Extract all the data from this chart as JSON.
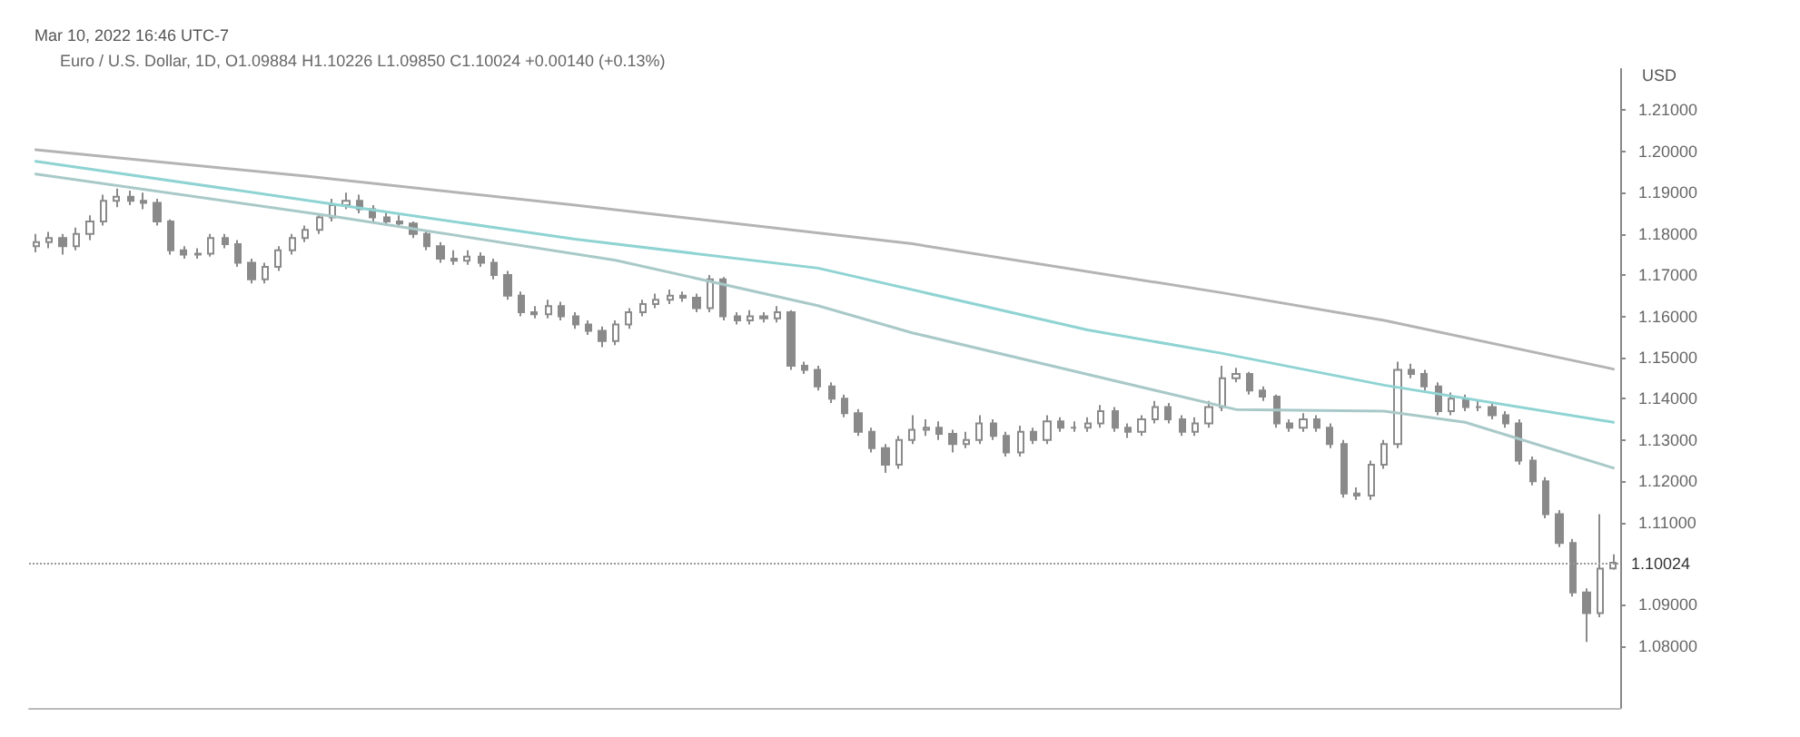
{
  "chart_data": {
    "type": "candlestick",
    "title": "Mar 10, 2022 16:46 UTC-7",
    "subtitle": "Euro / U.S. Dollar, 1D, O1.09884 H1.10226 L1.09850 C1.10024 +0.00140 (+0.13%)",
    "ylabel": "USD",
    "categories": [
      null,
      null,
      null,
      null,
      null,
      null,
      null,
      null,
      null,
      null,
      null,
      null,
      null,
      null,
      null,
      null,
      null,
      null,
      null,
      null,
      null,
      null,
      null,
      null,
      null,
      null,
      null,
      null,
      null,
      null,
      null,
      null,
      null,
      null,
      null,
      null,
      null,
      null,
      null,
      null,
      null,
      null,
      null,
      null,
      null,
      null,
      null,
      null,
      null,
      null,
      null,
      null,
      null,
      null,
      null,
      null,
      null,
      null,
      null,
      null,
      null,
      null,
      null,
      null,
      null,
      null,
      null,
      null,
      null,
      null,
      null,
      null,
      null,
      null,
      null,
      null,
      null,
      null,
      null,
      null,
      null,
      null,
      null,
      null,
      null,
      null,
      null,
      null,
      null,
      null,
      null,
      null,
      null,
      null,
      null,
      null,
      null,
      null,
      null,
      null,
      null,
      null,
      null,
      null,
      null,
      null,
      null,
      null,
      null,
      null,
      null,
      null,
      null,
      null,
      null,
      null,
      null,
      null
    ],
    "ohlc": [
      [
        1.177,
        1.18,
        1.1755,
        1.178
      ],
      [
        1.178,
        1.1805,
        1.1765,
        1.179
      ],
      [
        1.179,
        1.18,
        1.175,
        1.177
      ],
      [
        1.177,
        1.1815,
        1.176,
        1.18
      ],
      [
        1.18,
        1.1845,
        1.1785,
        1.183
      ],
      [
        1.183,
        1.1895,
        1.182,
        1.188
      ],
      [
        1.188,
        1.191,
        1.1865,
        1.189
      ],
      [
        1.189,
        1.1905,
        1.187,
        1.188
      ],
      [
        1.188,
        1.19,
        1.186,
        1.1875
      ],
      [
        1.1875,
        1.1885,
        1.182,
        1.183
      ],
      [
        1.183,
        1.1835,
        1.175,
        1.176
      ],
      [
        1.176,
        1.177,
        1.174,
        1.175
      ],
      [
        1.175,
        1.1765,
        1.174,
        1.1752
      ],
      [
        1.1752,
        1.18,
        1.1745,
        1.179
      ],
      [
        1.179,
        1.18,
        1.1765,
        1.1775
      ],
      [
        1.1775,
        1.1785,
        1.172,
        1.173
      ],
      [
        1.173,
        1.174,
        1.168,
        1.169
      ],
      [
        1.169,
        1.173,
        1.168,
        1.172
      ],
      [
        1.172,
        1.177,
        1.171,
        1.176
      ],
      [
        1.176,
        1.18,
        1.175,
        1.179
      ],
      [
        1.179,
        1.182,
        1.178,
        1.181
      ],
      [
        1.181,
        1.185,
        1.18,
        1.184
      ],
      [
        1.184,
        1.1885,
        1.183,
        1.187
      ],
      [
        1.187,
        1.19,
        1.186,
        1.188
      ],
      [
        1.188,
        1.1895,
        1.185,
        1.186
      ],
      [
        1.186,
        1.187,
        1.183,
        1.184
      ],
      [
        1.184,
        1.1855,
        1.182,
        1.183
      ],
      [
        1.183,
        1.1845,
        1.1815,
        1.1825
      ],
      [
        1.1825,
        1.183,
        1.179,
        1.18
      ],
      [
        1.18,
        1.181,
        1.176,
        1.177
      ],
      [
        1.177,
        1.178,
        1.173,
        1.174
      ],
      [
        1.174,
        1.176,
        1.1725,
        1.1735
      ],
      [
        1.1735,
        1.176,
        1.1725,
        1.1745
      ],
      [
        1.1745,
        1.1755,
        1.172,
        1.173
      ],
      [
        1.173,
        1.174,
        1.169,
        1.17
      ],
      [
        1.17,
        1.171,
        1.164,
        1.165
      ],
      [
        1.165,
        1.166,
        1.16,
        1.161
      ],
      [
        1.161,
        1.1625,
        1.1595,
        1.1605
      ],
      [
        1.1605,
        1.164,
        1.1595,
        1.1625
      ],
      [
        1.1625,
        1.1635,
        1.159,
        1.16
      ],
      [
        1.16,
        1.161,
        1.157,
        1.158
      ],
      [
        1.158,
        1.159,
        1.1555,
        1.1565
      ],
      [
        1.1565,
        1.1575,
        1.1525,
        1.154
      ],
      [
        1.154,
        1.159,
        1.153,
        1.158
      ],
      [
        1.158,
        1.162,
        1.157,
        1.161
      ],
      [
        1.161,
        1.164,
        1.16,
        1.163
      ],
      [
        1.163,
        1.1655,
        1.162,
        1.164
      ],
      [
        1.164,
        1.1665,
        1.163,
        1.165
      ],
      [
        1.165,
        1.166,
        1.1635,
        1.1645
      ],
      [
        1.1645,
        1.1655,
        1.161,
        1.162
      ],
      [
        1.162,
        1.17,
        1.161,
        1.169
      ],
      [
        1.169,
        1.1695,
        1.159,
        1.16
      ],
      [
        1.16,
        1.161,
        1.158,
        1.159
      ],
      [
        1.159,
        1.1615,
        1.158,
        1.16
      ],
      [
        1.16,
        1.161,
        1.1585,
        1.1595
      ],
      [
        1.1595,
        1.1625,
        1.1585,
        1.161
      ],
      [
        1.161,
        1.1615,
        1.147,
        1.148
      ],
      [
        1.148,
        1.149,
        1.146,
        1.147
      ],
      [
        1.147,
        1.148,
        1.142,
        1.143
      ],
      [
        1.143,
        1.144,
        1.139,
        1.14
      ],
      [
        1.14,
        1.141,
        1.1355,
        1.1365
      ],
      [
        1.1365,
        1.1375,
        1.131,
        1.132
      ],
      [
        1.132,
        1.133,
        1.127,
        1.128
      ],
      [
        1.128,
        1.129,
        1.122,
        1.124
      ],
      [
        1.124,
        1.131,
        1.123,
        1.13
      ],
      [
        1.13,
        1.136,
        1.129,
        1.1325
      ],
      [
        1.1325,
        1.135,
        1.131,
        1.133
      ],
      [
        1.133,
        1.1345,
        1.13,
        1.1315
      ],
      [
        1.1315,
        1.1325,
        1.127,
        1.129
      ],
      [
        1.129,
        1.132,
        1.128,
        1.13
      ],
      [
        1.13,
        1.136,
        1.129,
        1.134
      ],
      [
        1.134,
        1.135,
        1.13,
        1.131
      ],
      [
        1.131,
        1.132,
        1.126,
        1.127
      ],
      [
        1.127,
        1.1335,
        1.126,
        1.132
      ],
      [
        1.132,
        1.133,
        1.129,
        1.13
      ],
      [
        1.13,
        1.136,
        1.129,
        1.1345
      ],
      [
        1.1345,
        1.1355,
        1.132,
        1.133
      ],
      [
        1.133,
        1.1345,
        1.132,
        1.133
      ],
      [
        1.133,
        1.1355,
        1.132,
        1.134
      ],
      [
        1.134,
        1.1385,
        1.133,
        1.137
      ],
      [
        1.137,
        1.138,
        1.132,
        1.133
      ],
      [
        1.133,
        1.134,
        1.1305,
        1.132
      ],
      [
        1.132,
        1.136,
        1.131,
        1.135
      ],
      [
        1.135,
        1.1395,
        1.134,
        1.138
      ],
      [
        1.138,
        1.139,
        1.134,
        1.135
      ],
      [
        1.135,
        1.136,
        1.131,
        1.132
      ],
      [
        1.132,
        1.1355,
        1.131,
        1.134
      ],
      [
        1.134,
        1.1395,
        1.133,
        1.138
      ],
      [
        1.138,
        1.148,
        1.137,
        1.145
      ],
      [
        1.145,
        1.1475,
        1.144,
        1.146
      ],
      [
        1.146,
        1.1465,
        1.141,
        1.142
      ],
      [
        1.142,
        1.143,
        1.1395,
        1.1405
      ],
      [
        1.1405,
        1.141,
        1.133,
        1.134
      ],
      [
        1.134,
        1.135,
        1.132,
        1.133
      ],
      [
        1.133,
        1.1365,
        1.132,
        1.135
      ],
      [
        1.135,
        1.136,
        1.132,
        1.133
      ],
      [
        1.133,
        1.134,
        1.128,
        1.129
      ],
      [
        1.129,
        1.13,
        1.116,
        1.117
      ],
      [
        1.117,
        1.1185,
        1.1155,
        1.1165
      ],
      [
        1.1165,
        1.125,
        1.1155,
        1.124
      ],
      [
        1.124,
        1.13,
        1.123,
        1.129
      ],
      [
        1.129,
        1.149,
        1.128,
        1.147
      ],
      [
        1.147,
        1.1485,
        1.145,
        1.146
      ],
      [
        1.146,
        1.147,
        1.142,
        1.143
      ],
      [
        1.143,
        1.144,
        1.136,
        1.137
      ],
      [
        1.137,
        1.1415,
        1.136,
        1.14
      ],
      [
        1.14,
        1.141,
        1.137,
        1.138
      ],
      [
        1.138,
        1.1395,
        1.137,
        1.138
      ],
      [
        1.138,
        1.139,
        1.135,
        1.136
      ],
      [
        1.136,
        1.137,
        1.133,
        1.134
      ],
      [
        1.134,
        1.135,
        1.124,
        1.125
      ],
      [
        1.125,
        1.126,
        1.119,
        1.12
      ],
      [
        1.12,
        1.121,
        1.111,
        1.112
      ],
      [
        1.112,
        1.113,
        1.104,
        1.105
      ],
      [
        1.105,
        1.106,
        1.092,
        1.093
      ],
      [
        1.093,
        1.094,
        1.081,
        1.088
      ],
      [
        1.088,
        1.112,
        1.087,
        1.0988
      ],
      [
        1.09884,
        1.10226,
        1.0985,
        1.10024
      ]
    ],
    "series": [
      {
        "type": "line",
        "color": "#b4b4b4",
        "values": [
          1.2004,
          null,
          null,
          null,
          null,
          null,
          null,
          null,
          null,
          null,
          null,
          null,
          null,
          null,
          null,
          null,
          null,
          null,
          null,
          null,
          1.194,
          null,
          null,
          null,
          null,
          null,
          null,
          null,
          null,
          null,
          null,
          null,
          null,
          null,
          null,
          null,
          null,
          null,
          null,
          null,
          1.187,
          null,
          null,
          null,
          null,
          null,
          null,
          null,
          null,
          null,
          null,
          null,
          null,
          null,
          null,
          null,
          null,
          null,
          null,
          null,
          null,
          null,
          null,
          null,
          null,
          1.1776,
          null,
          null,
          null,
          null,
          null,
          null,
          null,
          null,
          null,
          null,
          null,
          null,
          null,
          null,
          null,
          null,
          null,
          null,
          null,
          null,
          null,
          null,
          1.1657,
          null,
          null,
          null,
          null,
          null,
          null,
          null,
          null,
          null,
          null,
          null,
          1.159,
          null,
          null,
          null,
          null,
          null,
          null,
          null,
          null,
          null,
          null,
          null,
          null,
          null,
          null,
          null,
          null,
          1.1472
        ]
      },
      {
        "type": "line",
        "color": "#8fd3d3",
        "values": [
          1.1976,
          null,
          null,
          null,
          null,
          null,
          null,
          null,
          null,
          null,
          null,
          null,
          null,
          null,
          null,
          null,
          null,
          null,
          null,
          null,
          1.1882,
          null,
          null,
          null,
          null,
          null,
          null,
          null,
          null,
          null,
          null,
          null,
          null,
          null,
          null,
          null,
          null,
          null,
          null,
          null,
          1.1787,
          null,
          null,
          null,
          null,
          null,
          null,
          null,
          null,
          null,
          null,
          null,
          null,
          null,
          null,
          null,
          null,
          null,
          1.1717,
          null,
          null,
          null,
          null,
          null,
          null,
          null,
          null,
          null,
          null,
          null,
          null,
          null,
          null,
          null,
          null,
          null,
          null,
          null,
          1.1567,
          null,
          null,
          null,
          null,
          null,
          null,
          null,
          null,
          null,
          1.151,
          null,
          null,
          null,
          null,
          null,
          null,
          null,
          null,
          null,
          null,
          null,
          1.1433,
          null,
          null,
          null,
          null,
          null,
          null,
          null,
          null,
          null,
          null,
          null,
          null,
          null,
          null,
          null,
          null,
          1.1343
        ]
      },
      {
        "type": "line",
        "color": "#a9c9c9",
        "values": [
          1.1945,
          null,
          null,
          null,
          null,
          null,
          null,
          null,
          null,
          null,
          null,
          null,
          null,
          null,
          null,
          null,
          null,
          null,
          null,
          null,
          null,
          null,
          1.1843,
          null,
          null,
          null,
          null,
          null,
          null,
          null,
          null,
          null,
          null,
          null,
          null,
          null,
          null,
          null,
          null,
          null,
          null,
          null,
          null,
          1.1736,
          null,
          null,
          null,
          null,
          null,
          null,
          null,
          null,
          null,
          null,
          null,
          null,
          null,
          null,
          1.1626,
          null,
          null,
          null,
          null,
          null,
          null,
          1.156,
          null,
          null,
          null,
          null,
          null,
          null,
          null,
          null,
          null,
          null,
          null,
          null,
          null,
          null,
          null,
          null,
          null,
          null,
          null,
          null,
          null,
          null,
          null,
          1.1374,
          null,
          null,
          null,
          null,
          null,
          null,
          null,
          null,
          null,
          null,
          1.137,
          null,
          null,
          null,
          null,
          null,
          1.1343,
          null,
          null,
          null,
          null,
          null,
          null,
          null,
          null,
          null,
          null,
          1.1232
        ]
      }
    ],
    "ylim": [
      1.065,
      1.22
    ],
    "yticks": [
      {
        "value": 1.21,
        "label": "1.21000"
      },
      {
        "value": 1.2,
        "label": "1.20000"
      },
      {
        "value": 1.19,
        "label": "1.19000"
      },
      {
        "value": 1.18,
        "label": "1.18000"
      },
      {
        "value": 1.17,
        "label": "1.17000"
      },
      {
        "value": 1.16,
        "label": "1.16000"
      },
      {
        "value": 1.15,
        "label": "1.15000"
      },
      {
        "value": 1.14,
        "label": "1.14000"
      },
      {
        "value": 1.13,
        "label": "1.13000"
      },
      {
        "value": 1.12,
        "label": "1.12000"
      },
      {
        "value": 1.11,
        "label": "1.11000"
      },
      {
        "value": 1.09,
        "label": "1.09000"
      },
      {
        "value": 1.08,
        "label": "1.08000"
      }
    ],
    "ref_lines": [
      {
        "axis": "y",
        "value": 1.10024,
        "label": "1.10024"
      }
    ],
    "grid": false
  }
}
